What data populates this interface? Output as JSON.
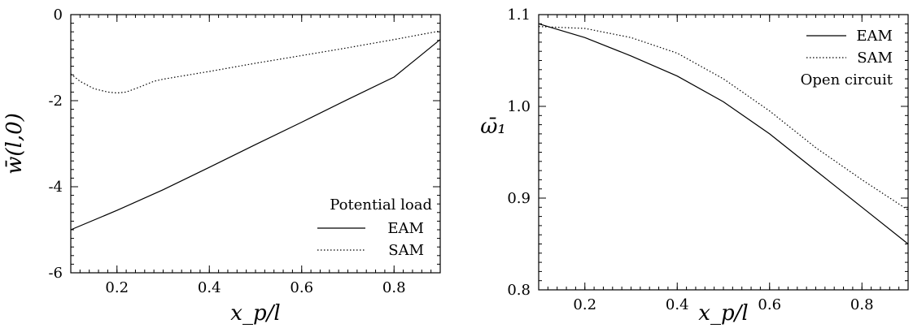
{
  "chart_data": [
    {
      "type": "line",
      "title": "",
      "xlabel": "x_p/l",
      "ylabel": "w̄(l,0)",
      "xlim": [
        0.1,
        0.9
      ],
      "ylim": [
        -6,
        0
      ],
      "x_ticks": [
        0.2,
        0.4,
        0.6,
        0.8
      ],
      "x_tick_labels": [
        "0.2",
        "0.4",
        "0.6",
        "0.8"
      ],
      "y_ticks": [
        0,
        -2,
        -4,
        -6
      ],
      "y_tick_labels": [
        "0",
        "-2",
        "-4",
        "-6"
      ],
      "legend_title": "Potential load",
      "legend_position": "bottom-right",
      "series": [
        {
          "name": "EAM",
          "style": "solid",
          "x": [
            0.1,
            0.2,
            0.3,
            0.4,
            0.5,
            0.6,
            0.7,
            0.8,
            0.9
          ],
          "y": [
            -5.0,
            -4.55,
            -4.07,
            -3.55,
            -3.02,
            -2.5,
            -1.97,
            -1.45,
            -0.58
          ]
        },
        {
          "name": "SAM",
          "style": "dotted",
          "x": [
            0.1,
            0.12,
            0.15,
            0.18,
            0.2,
            0.22,
            0.25,
            0.28,
            0.3,
            0.4,
            0.5,
            0.6,
            0.7,
            0.8,
            0.9
          ],
          "y": [
            -1.38,
            -1.55,
            -1.72,
            -1.8,
            -1.82,
            -1.8,
            -1.68,
            -1.55,
            -1.5,
            -1.32,
            -1.13,
            -0.95,
            -0.77,
            -0.58,
            -0.38
          ]
        }
      ]
    },
    {
      "type": "line",
      "title": "",
      "xlabel": "x_p/l",
      "ylabel": "ω̄₁",
      "xlim": [
        0.1,
        0.9
      ],
      "ylim": [
        0.8,
        1.1
      ],
      "x_ticks": [
        0.2,
        0.4,
        0.6,
        0.8
      ],
      "x_tick_labels": [
        "0.2",
        "0.4",
        "0.6",
        "0.8"
      ],
      "y_ticks": [
        0.8,
        0.9,
        1.0,
        1.1
      ],
      "y_tick_labels": [
        "0.8",
        "0.9",
        "1.0",
        "1.1"
      ],
      "legend_title": "Open circuit",
      "legend_position": "top-right",
      "series": [
        {
          "name": "EAM",
          "style": "solid",
          "x": [
            0.1,
            0.2,
            0.3,
            0.4,
            0.5,
            0.6,
            0.7,
            0.8,
            0.9
          ],
          "y": [
            1.09,
            1.075,
            1.055,
            1.033,
            1.005,
            0.97,
            0.93,
            0.89,
            0.85
          ]
        },
        {
          "name": "SAM",
          "style": "dotted",
          "x": [
            0.1,
            0.2,
            0.3,
            0.4,
            0.5,
            0.6,
            0.7,
            0.8,
            0.9
          ],
          "y": [
            1.087,
            1.085,
            1.075,
            1.058,
            1.03,
            0.995,
            0.955,
            0.92,
            0.887
          ]
        }
      ]
    }
  ]
}
